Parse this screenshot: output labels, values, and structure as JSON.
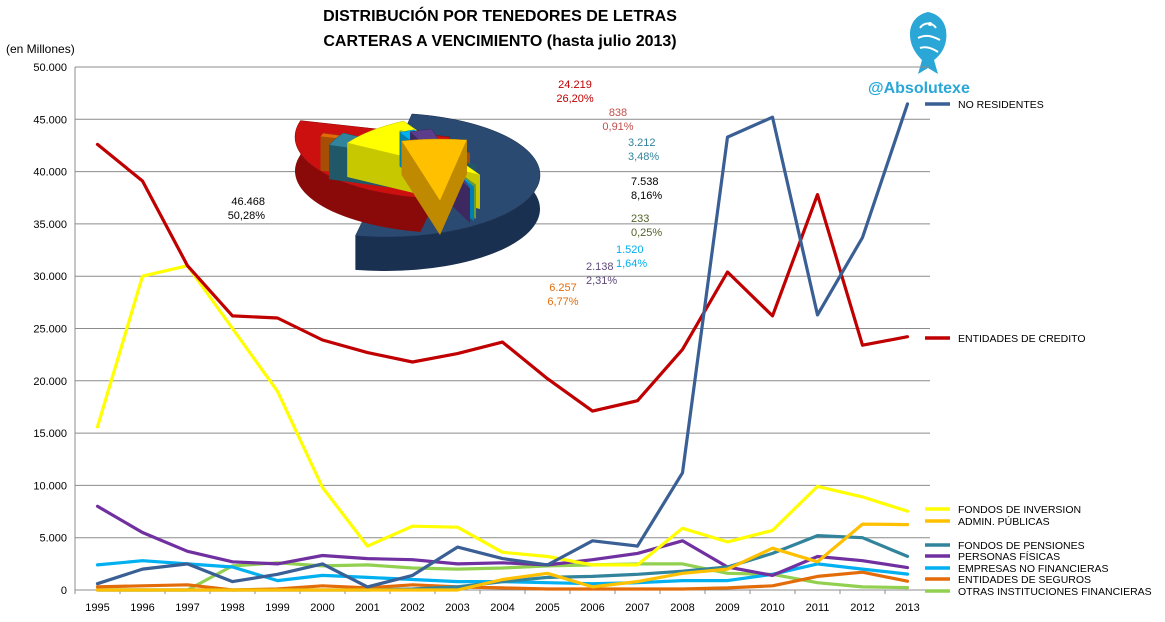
{
  "chart_data": {
    "type": "line",
    "title": "DISTRIBUCIÓN POR TENEDORES DE LETRAS",
    "subtitle": "CARTERAS A VENCIMIENTO (hasta julio 2013)",
    "ylabel": "(en Millones)",
    "ylim": [
      0,
      50000
    ],
    "y_ticks": [
      "0",
      "5.000",
      "10.000",
      "15.000",
      "20.000",
      "25.000",
      "30.000",
      "35.000",
      "40.000",
      "45.000",
      "50.000"
    ],
    "x": [
      "1995",
      "1996",
      "1997",
      "1998",
      "1999",
      "2000",
      "2001",
      "2002",
      "2003",
      "2004",
      "2005",
      "2006",
      "2007",
      "2008",
      "2009",
      "2010",
      "2011",
      "2012",
      "2013"
    ],
    "grid": "horizontal",
    "legend_placement": "right",
    "series": [
      {
        "name": "NO RESIDENTES",
        "color": "#3a5f95",
        "values": [
          600,
          2000,
          2500,
          800,
          1500,
          2500,
          300,
          1400,
          4100,
          3000,
          2400,
          4700,
          4200,
          11200,
          43300,
          45200,
          26300,
          33700,
          46468
        ]
      },
      {
        "name": "ENTIDADES  DE CREDITO",
        "color": "#c00000",
        "values": [
          42600,
          39100,
          31000,
          26200,
          26000,
          23900,
          22700,
          21800,
          22600,
          23700,
          20200,
          17100,
          18100,
          23000,
          30400,
          26200,
          37800,
          23400,
          24219
        ]
      },
      {
        "name": "FONDOS DE INVERSION",
        "color": "#ffff00",
        "values": [
          15600,
          30000,
          31000,
          25000,
          19000,
          9800,
          4200,
          6100,
          6000,
          3600,
          3200,
          2400,
          2400,
          5900,
          4600,
          5700,
          9900,
          8900,
          7538
        ]
      },
      {
        "name": "ADMIN. PÚBLICAS",
        "color": "#ffc000",
        "values": [
          0,
          0,
          0,
          0,
          0,
          0,
          0,
          0,
          0,
          1000,
          1600,
          300,
          800,
          1600,
          2000,
          4000,
          2700,
          6300,
          6257
        ]
      },
      {
        "name": "FONDOS DE PENSIONES",
        "color": "#31849b",
        "values": [
          0,
          0,
          0,
          0,
          0,
          0,
          0,
          100,
          300,
          800,
          1200,
          1300,
          1500,
          1800,
          2200,
          3500,
          5200,
          5000,
          3212
        ]
      },
      {
        "name": "PERSONAS FÍSICAS",
        "color": "#7030a0",
        "values": [
          8000,
          5500,
          3700,
          2700,
          2500,
          3300,
          3000,
          2900,
          2500,
          2600,
          2400,
          2900,
          3500,
          4700,
          2200,
          1400,
          3200,
          2800,
          2138
        ]
      },
      {
        "name": "EMPRESAS  NO FINANCIERAS",
        "color": "#00b0f0",
        "values": [
          2400,
          2800,
          2500,
          2200,
          900,
          1400,
          1200,
          1000,
          800,
          800,
          700,
          600,
          700,
          900,
          900,
          1500,
          2500,
          2000,
          1520
        ]
      },
      {
        "name": "ENTIDADES  DE SEGUROS",
        "color": "#e36c09",
        "values": [
          300,
          400,
          500,
          0,
          100,
          400,
          200,
          500,
          300,
          200,
          100,
          100,
          100,
          100,
          200,
          400,
          1300,
          1700,
          838
        ]
      },
      {
        "name": "OTRAS INSTITUCIONES   FINANCIERAS",
        "color": "#92d050",
        "values": [
          0,
          0,
          0,
          2300,
          2600,
          2300,
          2400,
          2100,
          2000,
          2100,
          2300,
          2400,
          2500,
          2500,
          1600,
          1500,
          700,
          300,
          233
        ]
      }
    ],
    "pie": {
      "slices": [
        {
          "name": "NO RESIDENTES",
          "value": "46.468",
          "percent": "50,28%",
          "color": "#2b4a72",
          "side": "#1a3050",
          "label_color": "#000000"
        },
        {
          "name": "ENTIDADES  DE CREDITO",
          "value": "24.219",
          "percent": "26,20%",
          "color": "#cc1010",
          "side": "#8a0a0a",
          "label_color": "#c00000"
        },
        {
          "name": "ENTIDADES  DE SEGUROS",
          "value": "838",
          "percent": "0,91%",
          "color": "#e36c09",
          "side": "#a64e05",
          "label_color": "#c0504d"
        },
        {
          "name": "FONDOS DE PENSIONES",
          "value": "3.212",
          "percent": "3,48%",
          "color": "#31849b",
          "side": "#205868",
          "label_color": "#31849b"
        },
        {
          "name": "FONDOS DE INVERSION",
          "value": "7.538",
          "percent": "8,16%",
          "color": "#ffff00",
          "side": "#c8c800",
          "label_color": "#000000"
        },
        {
          "name": "OTRAS INSTITUCIONES   FINANCIERAS",
          "value": "233",
          "percent": "0,25%",
          "color": "#92d050",
          "side": "#6a9a3a",
          "label_color": "#4f6228"
        },
        {
          "name": "EMPRESAS  NO FINANCIERAS",
          "value": "1.520",
          "percent": "1,64%",
          "color": "#00b0f0",
          "side": "#0080b0",
          "label_color": "#00b0f0"
        },
        {
          "name": "PERSONAS FÍSICAS",
          "value": "2.138",
          "percent": "2,31%",
          "color": "#5b3d8c",
          "side": "#3d2860",
          "label_color": "#604a7b"
        },
        {
          "name": "ADMIN. PÚBLICAS",
          "value": "6.257",
          "percent": "6,77%",
          "color": "#ffc000",
          "side": "#c08a00",
          "label_color": "#e36c09"
        }
      ]
    }
  },
  "watermark": "@Absolutexe",
  "logo_icon": "griffin-logo-icon"
}
